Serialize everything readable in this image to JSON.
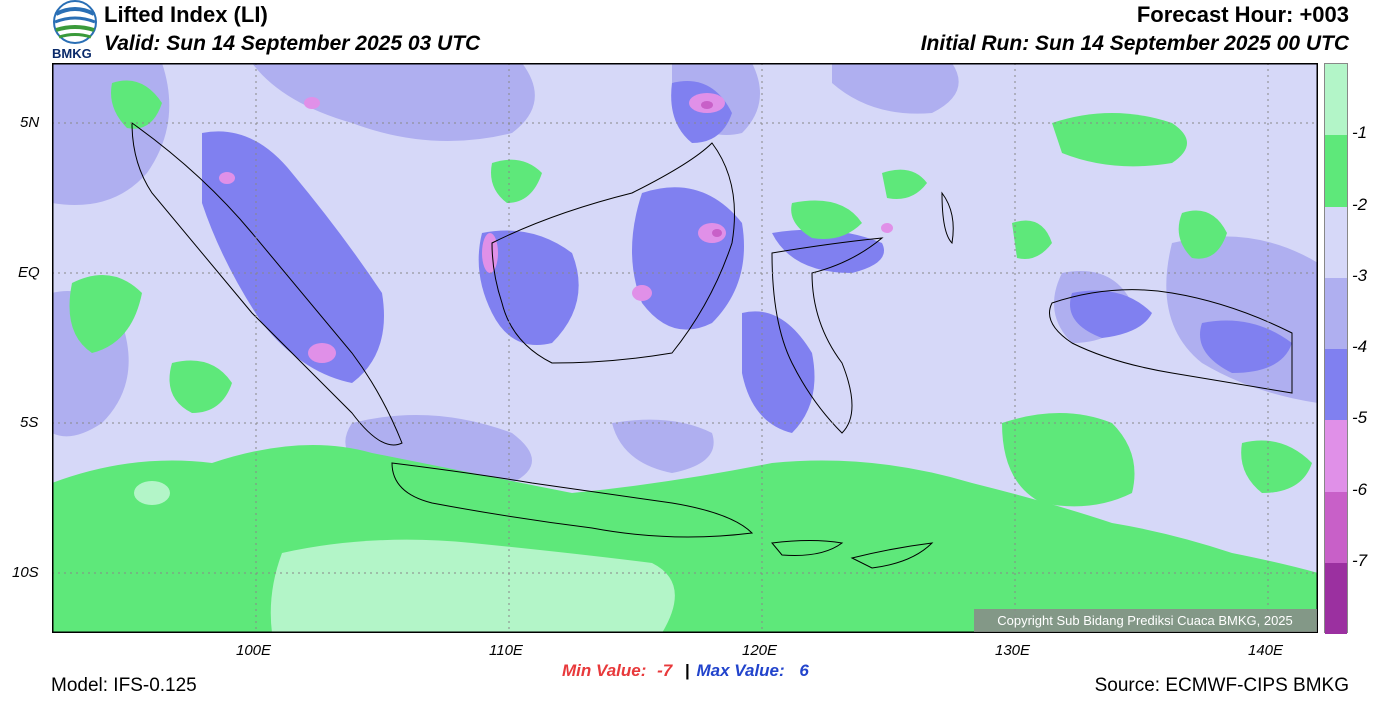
{
  "header": {
    "logo_text": "BMKG",
    "title": "Lifted Index (LI)",
    "valid": "Valid: Sun 14 September 2025 03 UTC",
    "forecast_hour": "Forecast Hour: +003",
    "initial_run": "Initial Run: Sun 14 September 2025 00 UTC"
  },
  "map": {
    "lat_labels": [
      "5N",
      "EQ",
      "5S",
      "10S"
    ],
    "lon_labels": [
      "100E",
      "110E",
      "120E",
      "130E",
      "140E"
    ],
    "copyright": "Copyright Sub Bidang Prediksi Cuaca BMKG, 2025",
    "colors": {
      "ge_minus1": "#b3f5c8",
      "m1_m2": "#5ee87a",
      "m2_m3": "#d6d8f8",
      "m3_m4": "#afaff0",
      "m4_m5": "#8080f0",
      "m5_m6": "#e090e8",
      "m6_m7": "#c860c8",
      "lt_m7": "#9b30a0"
    }
  },
  "legend": {
    "labels": [
      "-1",
      "-2",
      "-3",
      "-4",
      "-5",
      "-6",
      "-7"
    ],
    "colors": [
      "#b3f5c8",
      "#5ee87a",
      "#d6d8f8",
      "#afaff0",
      "#8080f0",
      "#e090e8",
      "#c860c8",
      "#9b30a0"
    ]
  },
  "stats": {
    "min_label": "Min Value:",
    "min_value": "-7",
    "separator": "|",
    "max_label": "Max Value:",
    "max_value": "6"
  },
  "footer": {
    "model": "Model: IFS-0.125",
    "source": "Source: ECMWF-CIPS BMKG"
  }
}
